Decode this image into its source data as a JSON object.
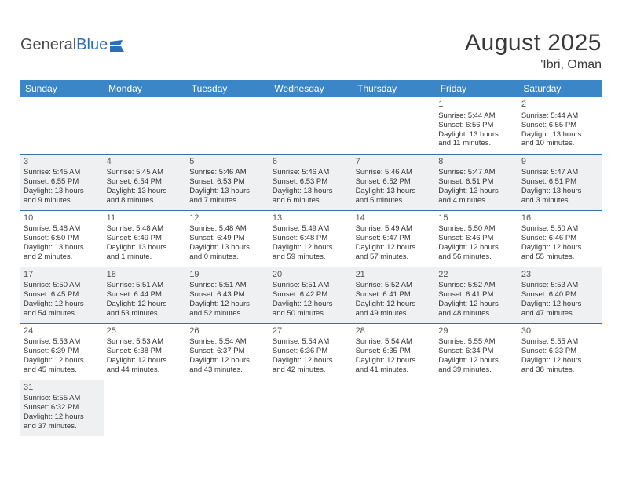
{
  "logo": {
    "text1": "General",
    "text2": "Blue"
  },
  "title": "August 2025",
  "location": "'Ibri, Oman",
  "colors": {
    "header_bg": "#3b86c6",
    "header_text": "#ffffff",
    "row_alt_bg": "#eef0f2",
    "border": "#3b6fa8",
    "logo_blue": "#2d6fb5",
    "text": "#333333"
  },
  "day_names": [
    "Sunday",
    "Monday",
    "Tuesday",
    "Wednesday",
    "Thursday",
    "Friday",
    "Saturday"
  ],
  "weeks": [
    [
      {
        "empty": true
      },
      {
        "empty": true
      },
      {
        "empty": true
      },
      {
        "empty": true
      },
      {
        "empty": true
      },
      {
        "day": "1",
        "sunrise": "Sunrise: 5:44 AM",
        "sunset": "Sunset: 6:56 PM",
        "daylight1": "Daylight: 13 hours",
        "daylight2": "and 11 minutes."
      },
      {
        "day": "2",
        "sunrise": "Sunrise: 5:44 AM",
        "sunset": "Sunset: 6:55 PM",
        "daylight1": "Daylight: 13 hours",
        "daylight2": "and 10 minutes."
      }
    ],
    [
      {
        "day": "3",
        "sunrise": "Sunrise: 5:45 AM",
        "sunset": "Sunset: 6:55 PM",
        "daylight1": "Daylight: 13 hours",
        "daylight2": "and 9 minutes."
      },
      {
        "day": "4",
        "sunrise": "Sunrise: 5:45 AM",
        "sunset": "Sunset: 6:54 PM",
        "daylight1": "Daylight: 13 hours",
        "daylight2": "and 8 minutes."
      },
      {
        "day": "5",
        "sunrise": "Sunrise: 5:46 AM",
        "sunset": "Sunset: 6:53 PM",
        "daylight1": "Daylight: 13 hours",
        "daylight2": "and 7 minutes."
      },
      {
        "day": "6",
        "sunrise": "Sunrise: 5:46 AM",
        "sunset": "Sunset: 6:53 PM",
        "daylight1": "Daylight: 13 hours",
        "daylight2": "and 6 minutes."
      },
      {
        "day": "7",
        "sunrise": "Sunrise: 5:46 AM",
        "sunset": "Sunset: 6:52 PM",
        "daylight1": "Daylight: 13 hours",
        "daylight2": "and 5 minutes."
      },
      {
        "day": "8",
        "sunrise": "Sunrise: 5:47 AM",
        "sunset": "Sunset: 6:51 PM",
        "daylight1": "Daylight: 13 hours",
        "daylight2": "and 4 minutes."
      },
      {
        "day": "9",
        "sunrise": "Sunrise: 5:47 AM",
        "sunset": "Sunset: 6:51 PM",
        "daylight1": "Daylight: 13 hours",
        "daylight2": "and 3 minutes."
      }
    ],
    [
      {
        "day": "10",
        "sunrise": "Sunrise: 5:48 AM",
        "sunset": "Sunset: 6:50 PM",
        "daylight1": "Daylight: 13 hours",
        "daylight2": "and 2 minutes."
      },
      {
        "day": "11",
        "sunrise": "Sunrise: 5:48 AM",
        "sunset": "Sunset: 6:49 PM",
        "daylight1": "Daylight: 13 hours",
        "daylight2": "and 1 minute."
      },
      {
        "day": "12",
        "sunrise": "Sunrise: 5:48 AM",
        "sunset": "Sunset: 6:49 PM",
        "daylight1": "Daylight: 13 hours",
        "daylight2": "and 0 minutes."
      },
      {
        "day": "13",
        "sunrise": "Sunrise: 5:49 AM",
        "sunset": "Sunset: 6:48 PM",
        "daylight1": "Daylight: 12 hours",
        "daylight2": "and 59 minutes."
      },
      {
        "day": "14",
        "sunrise": "Sunrise: 5:49 AM",
        "sunset": "Sunset: 6:47 PM",
        "daylight1": "Daylight: 12 hours",
        "daylight2": "and 57 minutes."
      },
      {
        "day": "15",
        "sunrise": "Sunrise: 5:50 AM",
        "sunset": "Sunset: 6:46 PM",
        "daylight1": "Daylight: 12 hours",
        "daylight2": "and 56 minutes."
      },
      {
        "day": "16",
        "sunrise": "Sunrise: 5:50 AM",
        "sunset": "Sunset: 6:46 PM",
        "daylight1": "Daylight: 12 hours",
        "daylight2": "and 55 minutes."
      }
    ],
    [
      {
        "day": "17",
        "sunrise": "Sunrise: 5:50 AM",
        "sunset": "Sunset: 6:45 PM",
        "daylight1": "Daylight: 12 hours",
        "daylight2": "and 54 minutes."
      },
      {
        "day": "18",
        "sunrise": "Sunrise: 5:51 AM",
        "sunset": "Sunset: 6:44 PM",
        "daylight1": "Daylight: 12 hours",
        "daylight2": "and 53 minutes."
      },
      {
        "day": "19",
        "sunrise": "Sunrise: 5:51 AM",
        "sunset": "Sunset: 6:43 PM",
        "daylight1": "Daylight: 12 hours",
        "daylight2": "and 52 minutes."
      },
      {
        "day": "20",
        "sunrise": "Sunrise: 5:51 AM",
        "sunset": "Sunset: 6:42 PM",
        "daylight1": "Daylight: 12 hours",
        "daylight2": "and 50 minutes."
      },
      {
        "day": "21",
        "sunrise": "Sunrise: 5:52 AM",
        "sunset": "Sunset: 6:41 PM",
        "daylight1": "Daylight: 12 hours",
        "daylight2": "and 49 minutes."
      },
      {
        "day": "22",
        "sunrise": "Sunrise: 5:52 AM",
        "sunset": "Sunset: 6:41 PM",
        "daylight1": "Daylight: 12 hours",
        "daylight2": "and 48 minutes."
      },
      {
        "day": "23",
        "sunrise": "Sunrise: 5:53 AM",
        "sunset": "Sunset: 6:40 PM",
        "daylight1": "Daylight: 12 hours",
        "daylight2": "and 47 minutes."
      }
    ],
    [
      {
        "day": "24",
        "sunrise": "Sunrise: 5:53 AM",
        "sunset": "Sunset: 6:39 PM",
        "daylight1": "Daylight: 12 hours",
        "daylight2": "and 45 minutes."
      },
      {
        "day": "25",
        "sunrise": "Sunrise: 5:53 AM",
        "sunset": "Sunset: 6:38 PM",
        "daylight1": "Daylight: 12 hours",
        "daylight2": "and 44 minutes."
      },
      {
        "day": "26",
        "sunrise": "Sunrise: 5:54 AM",
        "sunset": "Sunset: 6:37 PM",
        "daylight1": "Daylight: 12 hours",
        "daylight2": "and 43 minutes."
      },
      {
        "day": "27",
        "sunrise": "Sunrise: 5:54 AM",
        "sunset": "Sunset: 6:36 PM",
        "daylight1": "Daylight: 12 hours",
        "daylight2": "and 42 minutes."
      },
      {
        "day": "28",
        "sunrise": "Sunrise: 5:54 AM",
        "sunset": "Sunset: 6:35 PM",
        "daylight1": "Daylight: 12 hours",
        "daylight2": "and 41 minutes."
      },
      {
        "day": "29",
        "sunrise": "Sunrise: 5:55 AM",
        "sunset": "Sunset: 6:34 PM",
        "daylight1": "Daylight: 12 hours",
        "daylight2": "and 39 minutes."
      },
      {
        "day": "30",
        "sunrise": "Sunrise: 5:55 AM",
        "sunset": "Sunset: 6:33 PM",
        "daylight1": "Daylight: 12 hours",
        "daylight2": "and 38 minutes."
      }
    ],
    [
      {
        "day": "31",
        "sunrise": "Sunrise: 5:55 AM",
        "sunset": "Sunset: 6:32 PM",
        "daylight1": "Daylight: 12 hours",
        "daylight2": "and 37 minutes."
      },
      {
        "empty": true
      },
      {
        "empty": true
      },
      {
        "empty": true
      },
      {
        "empty": true
      },
      {
        "empty": true
      },
      {
        "empty": true
      }
    ]
  ]
}
